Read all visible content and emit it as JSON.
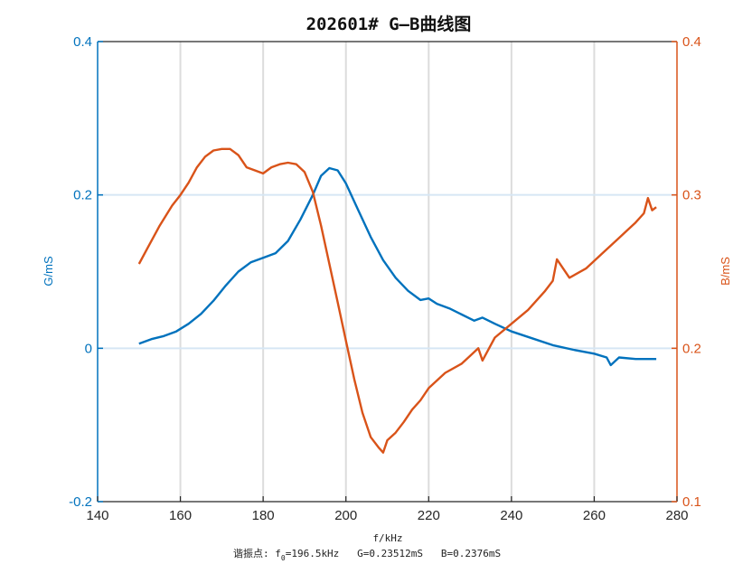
{
  "chart_data": {
    "type": "line",
    "title": "202601# G—B曲线图",
    "xlabel": "f/kHz",
    "ylabel_left": "G/mS",
    "ylabel_right": "B/mS",
    "xlim": [
      140,
      280
    ],
    "ylim_left": [
      -0.2,
      0.4
    ],
    "ylim_right": [
      0.1,
      0.4
    ],
    "x_ticks": [
      140,
      160,
      180,
      200,
      220,
      240,
      260,
      280
    ],
    "y_ticks_left": [
      "-0.2",
      "0",
      "0.2",
      "0.4"
    ],
    "y_ticks_left_values": [
      -0.2,
      0,
      0.2,
      0.4
    ],
    "y_ticks_right": [
      "0.1",
      "0.2",
      "0.3",
      "0.4"
    ],
    "y_ticks_right_values": [
      0.1,
      0.2,
      0.3,
      0.4
    ],
    "grid": {
      "x": true,
      "y": true
    },
    "series": [
      {
        "name": "G",
        "axis": "left",
        "color": "#0072BD",
        "x": [
          150,
          153,
          156,
          159,
          162,
          165,
          168,
          171,
          174,
          177,
          180,
          183,
          186,
          189,
          192,
          194,
          196,
          198,
          200,
          203,
          206,
          209,
          212,
          215,
          218,
          220,
          222,
          225,
          228,
          231,
          233,
          236,
          240,
          245,
          250,
          255,
          260,
          263,
          264,
          266,
          270,
          275
        ],
        "values": [
          0.006,
          0.012,
          0.016,
          0.022,
          0.032,
          0.045,
          0.062,
          0.082,
          0.1,
          0.112,
          0.118,
          0.124,
          0.14,
          0.168,
          0.2,
          0.225,
          0.235,
          0.232,
          0.215,
          0.18,
          0.145,
          0.115,
          0.092,
          0.075,
          0.063,
          0.065,
          0.058,
          0.052,
          0.044,
          0.036,
          0.04,
          0.032,
          0.022,
          0.013,
          0.004,
          -0.002,
          -0.007,
          -0.012,
          -0.022,
          -0.012,
          -0.014,
          -0.014
        ]
      },
      {
        "name": "B",
        "axis": "right",
        "color": "#D95319",
        "x": [
          150,
          152,
          155,
          158,
          160,
          162,
          164,
          166,
          168,
          170,
          172,
          174,
          176,
          178,
          180,
          182,
          184,
          186,
          188,
          190,
          192,
          194,
          196,
          198,
          200,
          202,
          204,
          206,
          208,
          209,
          210,
          212,
          214,
          216,
          218,
          220,
          224,
          228,
          230,
          232,
          233,
          236,
          240,
          244,
          248,
          250,
          251,
          254,
          258,
          262,
          266,
          270,
          272,
          273,
          274,
          275
        ],
        "values": [
          0.255,
          0.265,
          0.28,
          0.293,
          0.3,
          0.308,
          0.318,
          0.325,
          0.329,
          0.33,
          0.33,
          0.326,
          0.318,
          0.316,
          0.314,
          0.318,
          0.32,
          0.321,
          0.32,
          0.315,
          0.302,
          0.28,
          0.255,
          0.23,
          0.205,
          0.18,
          0.158,
          0.142,
          0.135,
          0.132,
          0.14,
          0.145,
          0.152,
          0.16,
          0.166,
          0.174,
          0.184,
          0.19,
          0.195,
          0.2,
          0.192,
          0.207,
          0.216,
          0.225,
          0.237,
          0.244,
          0.258,
          0.246,
          0.252,
          0.262,
          0.272,
          0.282,
          0.288,
          0.298,
          0.29,
          0.292
        ]
      }
    ],
    "annotation": {
      "prefix": "谐振点: f",
      "subscript": "0",
      "rest": "=196.5kHz   G=0.23512mS   B=0.2376mS",
      "f0_khz": 196.5,
      "G_mS": 0.23512,
      "B_mS": 0.2376
    }
  },
  "colors": {
    "left_axis": "#0072BD",
    "right_axis": "#D95319",
    "grid_x": "#dcdcdc",
    "grid_y": "#d6e6f4",
    "frame": "#262626"
  }
}
